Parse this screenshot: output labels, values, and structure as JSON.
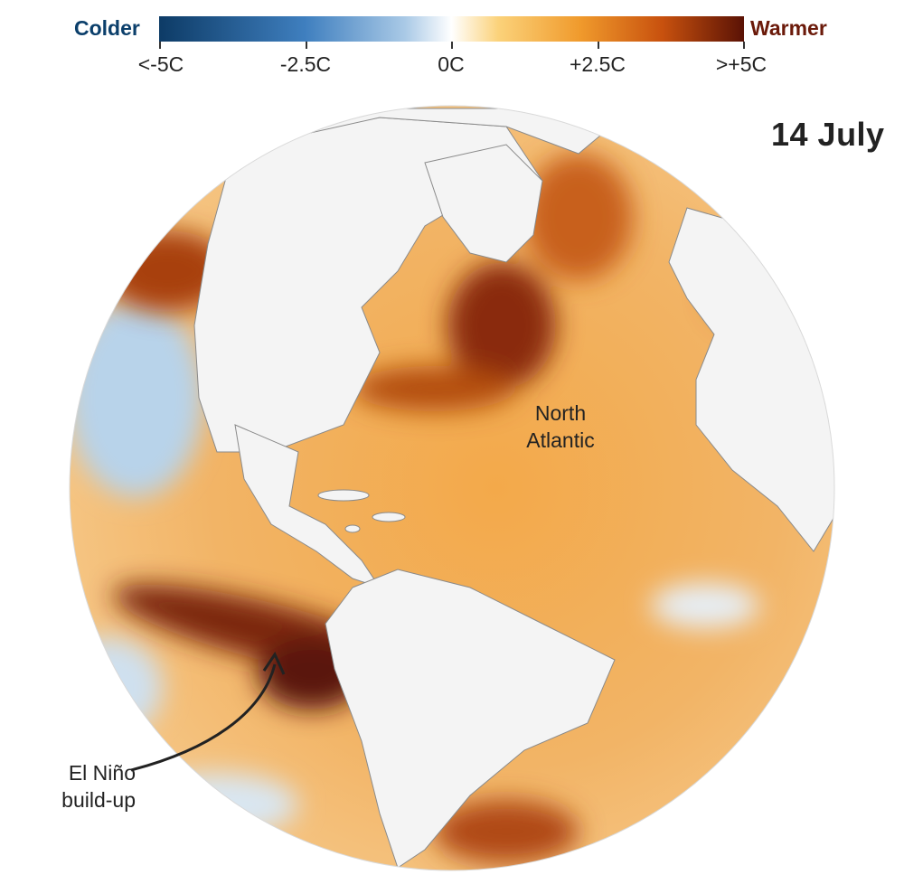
{
  "legend": {
    "colder_label": "Colder",
    "warmer_label": "Warmer",
    "ticks": [
      "<-5C",
      "-2.5C",
      "0C",
      "+2.5C",
      ">+5C"
    ],
    "colors": {
      "colder": "#0b3f6b",
      "warmer": "#6b1a0a",
      "gradient": [
        "#0d3b66",
        "#3f7fbf",
        "#a9c9e6",
        "#ffffff",
        "#fbd27a",
        "#f09a2c",
        "#c8510e",
        "#5a1205"
      ]
    }
  },
  "date_label": "14 July",
  "annotations": {
    "north_atlantic": [
      "North",
      "Atlantic"
    ],
    "el_nino": [
      "El Niño",
      "build-up"
    ]
  }
}
